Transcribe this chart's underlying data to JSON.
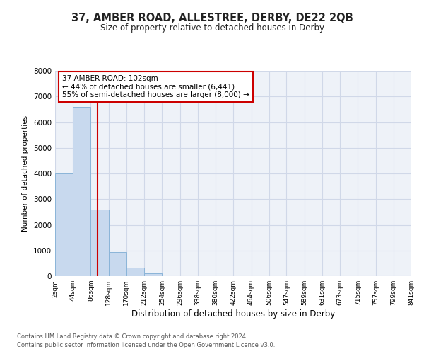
{
  "title": "37, AMBER ROAD, ALLESTREE, DERBY, DE22 2QB",
  "subtitle": "Size of property relative to detached houses in Derby",
  "xlabel": "Distribution of detached houses by size in Derby",
  "ylabel": "Number of detached properties",
  "bar_edges": [
    2,
    44,
    86,
    128,
    170,
    212,
    254,
    296,
    338,
    380,
    422,
    464,
    506,
    547,
    589,
    631,
    673,
    715,
    757,
    799,
    841
  ],
  "bar_heights": [
    4000,
    6600,
    2600,
    950,
    320,
    110,
    0,
    0,
    0,
    0,
    0,
    0,
    0,
    0,
    0,
    0,
    0,
    0,
    0,
    0
  ],
  "bar_color": "#c8d9ee",
  "bar_edge_color": "#8ab4d8",
  "property_value": 102,
  "vline_color": "#cc0000",
  "annotation_line1": "37 AMBER ROAD: 102sqm",
  "annotation_line2": "← 44% of detached houses are smaller (6,441)",
  "annotation_line3": "55% of semi-detached houses are larger (8,000) →",
  "annotation_box_color": "#cc0000",
  "ylim": [
    0,
    8000
  ],
  "yticks": [
    0,
    1000,
    2000,
    3000,
    4000,
    5000,
    6000,
    7000,
    8000
  ],
  "xtick_labels": [
    "2sqm",
    "44sqm",
    "86sqm",
    "128sqm",
    "170sqm",
    "212sqm",
    "254sqm",
    "296sqm",
    "338sqm",
    "380sqm",
    "422sqm",
    "464sqm",
    "506sqm",
    "547sqm",
    "589sqm",
    "631sqm",
    "673sqm",
    "715sqm",
    "757sqm",
    "799sqm",
    "841sqm"
  ],
  "grid_color": "#d0d8e8",
  "plot_bg_color": "#eef2f8",
  "fig_bg_color": "#ffffff",
  "footnote1": "Contains HM Land Registry data © Crown copyright and database right 2024.",
  "footnote2": "Contains public sector information licensed under the Open Government Licence v3.0."
}
